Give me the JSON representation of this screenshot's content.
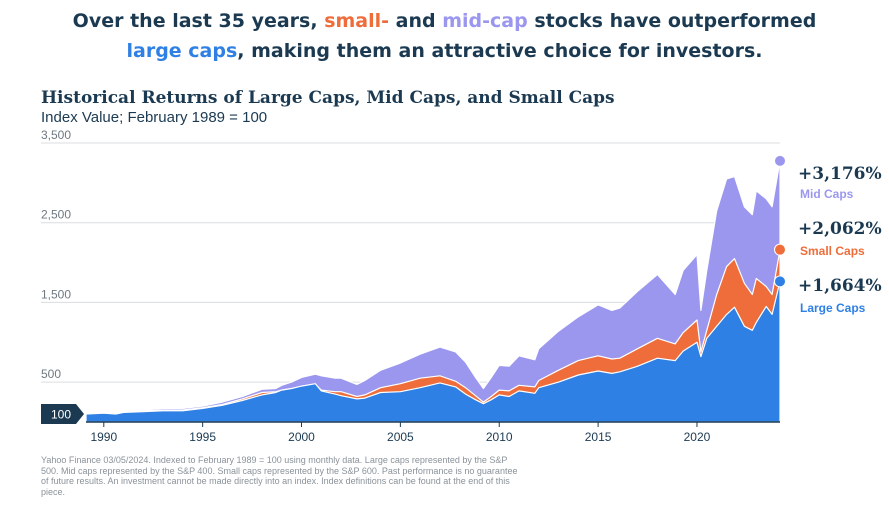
{
  "headline": {
    "part1": "Over the last 35 years, ",
    "small": "small-",
    "part2": " and ",
    "mid": "mid-cap",
    "part3": " stocks have outperformed",
    "large": "large caps",
    "part4": ", making them an attractive choice for investors."
  },
  "footnote": "Yahoo Finance 03/05/2024. Indexed to February 1989 = 100 using monthly data. Large caps represented by the S&P 500. Mid caps represented by the S&P 400. Small caps represented by the S&P 600. Past performance is no guarantee of future results. An investment cannot be made directly into an index. Index definitions can be found at the end of this piece.",
  "colors": {
    "large": "#2f80e4",
    "small": "#ee6d3a",
    "mid": "#9b97ee",
    "text": "#1b3a52"
  },
  "chart_data": {
    "type": "area",
    "title": "Historical Returns of Large Caps, Mid Caps, and Small Caps",
    "subtitle": "Index Value; February 1989 = 100",
    "ylim": [
      0,
      3500
    ],
    "xlim": [
      1989.1,
      2024.2
    ],
    "y_ticks": [
      {
        "value": 3500,
        "label": "3,500"
      },
      {
        "value": 2500,
        "label": "2,500"
      },
      {
        "value": 1500,
        "label": "1,500"
      },
      {
        "value": 500,
        "label": "500"
      }
    ],
    "base_marker": {
      "value": 100,
      "label": "100"
    },
    "x_ticks": [
      {
        "value": 1990,
        "label": "1990"
      },
      {
        "value": 1995,
        "label": "1995"
      },
      {
        "value": 2000,
        "label": "2000"
      },
      {
        "value": 2005,
        "label": "2005"
      },
      {
        "value": 2010,
        "label": "2010"
      },
      {
        "value": 2015,
        "label": "2015"
      },
      {
        "value": 2020,
        "label": "2020"
      }
    ],
    "grid": "horizontal",
    "x": [
      1989.1,
      1990,
      1990.6,
      1991,
      1992,
      1993,
      1994,
      1995,
      1996,
      1997,
      1998,
      1998.7,
      1999,
      1999.5,
      2000,
      2000.7,
      2001,
      2001.7,
      2002,
      2002.8,
      2003.2,
      2004,
      2005,
      2006,
      2007,
      2007.8,
      2008.3,
      2008.8,
      2009.2,
      2009.6,
      2010,
      2010.5,
      2011,
      2011.8,
      2012,
      2013,
      2014,
      2015,
      2015.7,
      2016.1,
      2017,
      2018,
      2018.9,
      2019.3,
      2020,
      2020.2,
      2020.5,
      2021,
      2021.5,
      2021.9,
      2022.4,
      2022.8,
      2023,
      2023.5,
      2023.8,
      2024.2
    ],
    "series": [
      {
        "name": "Large Caps",
        "final_label": "+1,664%",
        "values": [
          100,
          110,
          100,
          120,
          130,
          140,
          140,
          170,
          210,
          270,
          340,
          370,
          400,
          420,
          450,
          480,
          390,
          350,
          330,
          290,
          300,
          370,
          380,
          430,
          490,
          440,
          350,
          280,
          230,
          280,
          340,
          320,
          390,
          360,
          430,
          500,
          590,
          640,
          610,
          630,
          700,
          800,
          770,
          890,
          1000,
          820,
          1050,
          1200,
          1350,
          1440,
          1200,
          1150,
          1250,
          1450,
          1350,
          1764
        ]
      },
      {
        "name": "Small Caps",
        "final_label": "+2,062%",
        "values": [
          100,
          110,
          95,
          120,
          140,
          150,
          150,
          180,
          220,
          290,
          370,
          380,
          400,
          420,
          440,
          470,
          400,
          380,
          380,
          320,
          340,
          430,
          480,
          550,
          580,
          510,
          430,
          330,
          250,
          320,
          400,
          390,
          460,
          440,
          520,
          650,
          770,
          830,
          790,
          800,
          920,
          1050,
          980,
          1120,
          1280,
          880,
          1150,
          1600,
          1950,
          2050,
          1740,
          1600,
          1800,
          1700,
          1600,
          2162
        ]
      },
      {
        "name": "Mid Caps",
        "final_label": "+3,176%",
        "values": [
          100,
          110,
          100,
          130,
          150,
          170,
          170,
          200,
          250,
          320,
          410,
          420,
          460,
          500,
          560,
          600,
          580,
          550,
          550,
          470,
          520,
          650,
          740,
          850,
          940,
          880,
          750,
          560,
          420,
          560,
          710,
          700,
          830,
          780,
          920,
          1140,
          1320,
          1470,
          1400,
          1430,
          1640,
          1850,
          1600,
          1900,
          2100,
          1400,
          1900,
          2650,
          3050,
          3080,
          2700,
          2600,
          2900,
          2800,
          2700,
          3276
        ]
      }
    ]
  }
}
